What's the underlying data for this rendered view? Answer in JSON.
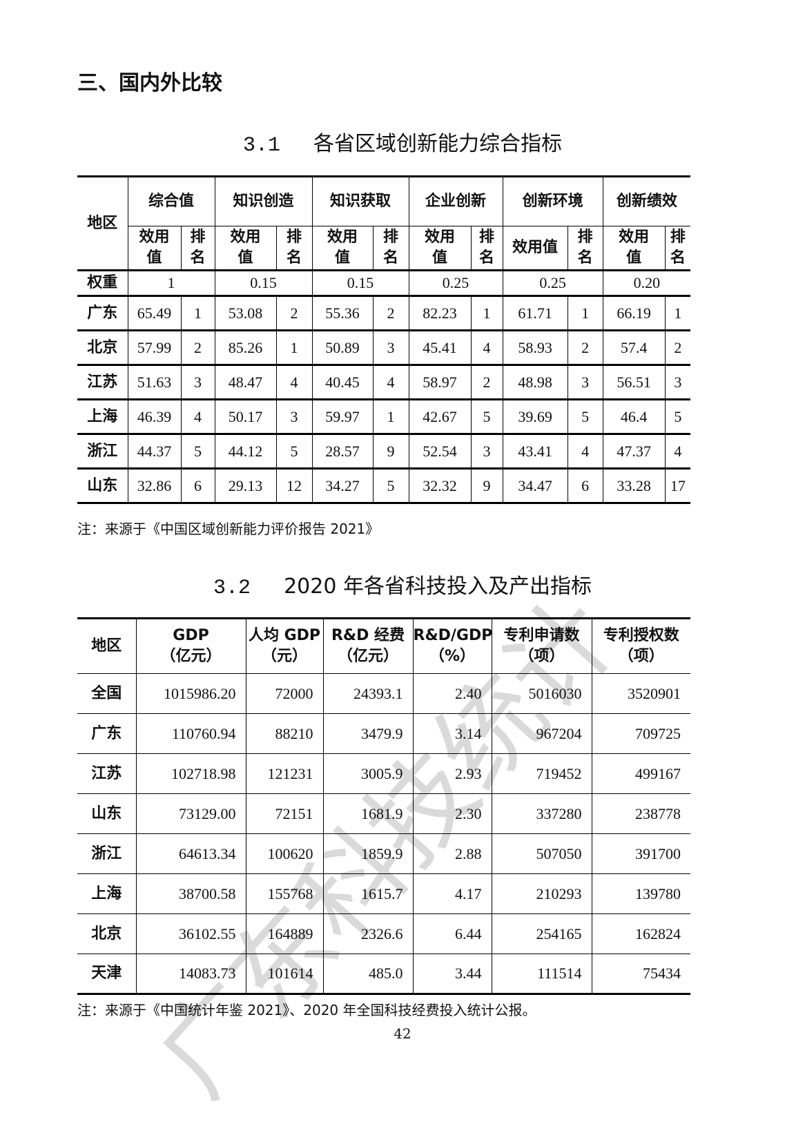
{
  "section_heading": "三、国内外比较",
  "table1": {
    "number": "3.1",
    "title": "各省区域创新能力综合指标",
    "region_header": "地区",
    "groups": [
      "综合值",
      "知识创造",
      "知识获取",
      "企业创新",
      "创新环境",
      "创新绩效"
    ],
    "sub_value": "效用值",
    "sub_rank": "排名",
    "weight_label": "权重",
    "weights": [
      "1",
      "0.15",
      "0.15",
      "0.25",
      "0.25",
      "0.20"
    ],
    "rows": [
      {
        "region": "广东",
        "cells": [
          "65.49",
          "1",
          "53.08",
          "2",
          "55.36",
          "2",
          "82.23",
          "1",
          "61.71",
          "1",
          "66.19",
          "1"
        ]
      },
      {
        "region": "北京",
        "cells": [
          "57.99",
          "2",
          "85.26",
          "1",
          "50.89",
          "3",
          "45.41",
          "4",
          "58.93",
          "2",
          "57.4",
          "2"
        ]
      },
      {
        "region": "江苏",
        "cells": [
          "51.63",
          "3",
          "48.47",
          "4",
          "40.45",
          "4",
          "58.97",
          "2",
          "48.98",
          "3",
          "56.51",
          "3"
        ]
      },
      {
        "region": "上海",
        "cells": [
          "46.39",
          "4",
          "50.17",
          "3",
          "59.97",
          "1",
          "42.67",
          "5",
          "39.69",
          "5",
          "46.4",
          "5"
        ]
      },
      {
        "region": "浙江",
        "cells": [
          "44.37",
          "5",
          "44.12",
          "5",
          "28.57",
          "9",
          "52.54",
          "3",
          "43.41",
          "4",
          "47.37",
          "4"
        ]
      },
      {
        "region": "山东",
        "cells": [
          "32.86",
          "6",
          "29.13",
          "12",
          "34.27",
          "5",
          "32.32",
          "9",
          "34.47",
          "6",
          "33.28",
          "17"
        ]
      }
    ],
    "note": "注：来源于《中国区域创新能力评价报告 2021》"
  },
  "table2": {
    "number": "3.2",
    "title": "2020 年各省科技投入及产出指标",
    "headers": [
      {
        "l1": "地区",
        "l2": ""
      },
      {
        "l1": "GDP",
        "l2": "（亿元）"
      },
      {
        "l1": "人均 GDP",
        "l2": "（元）"
      },
      {
        "l1": "R&D 经费",
        "l2": "（亿元）"
      },
      {
        "l1": "R&D/GDP",
        "l2": "（%）"
      },
      {
        "l1": "专利申请数",
        "l2": "（项）"
      },
      {
        "l1": "专利授权数",
        "l2": "（项）"
      }
    ],
    "rows": [
      {
        "region": "全国",
        "cells": [
          "1015986.20",
          "72000",
          "24393.1",
          "2.40",
          "5016030",
          "3520901"
        ]
      },
      {
        "region": "广东",
        "cells": [
          "110760.94",
          "88210",
          "3479.9",
          "3.14",
          "967204",
          "709725"
        ]
      },
      {
        "region": "江苏",
        "cells": [
          "102718.98",
          "121231",
          "3005.9",
          "2.93",
          "719452",
          "499167"
        ]
      },
      {
        "region": "山东",
        "cells": [
          "73129.00",
          "72151",
          "1681.9",
          "2.30",
          "337280",
          "238778"
        ]
      },
      {
        "region": "浙江",
        "cells": [
          "64613.34",
          "100620",
          "1859.9",
          "2.88",
          "507050",
          "391700"
        ]
      },
      {
        "region": "上海",
        "cells": [
          "38700.58",
          "155768",
          "1615.7",
          "4.17",
          "210293",
          "139780"
        ]
      },
      {
        "region": "北京",
        "cells": [
          "36102.55",
          "164889",
          "2326.6",
          "6.44",
          "254165",
          "162824"
        ]
      },
      {
        "region": "天津",
        "cells": [
          "14083.73",
          "101614",
          "485.0",
          "3.44",
          "111514",
          "75434"
        ]
      }
    ],
    "note": "注：来源于《中国统计年鉴 2021》、2020 年全国科技经费投入统计公报。"
  },
  "page_number": "42",
  "watermark": "广东科技统计"
}
